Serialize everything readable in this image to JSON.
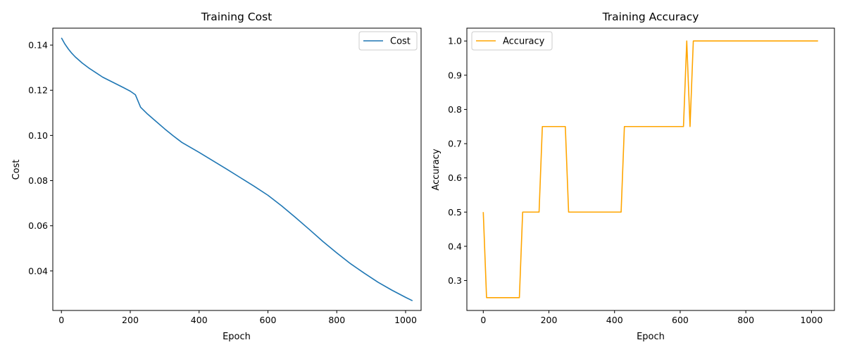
{
  "chart_data": [
    {
      "type": "line",
      "title": "Training Cost",
      "xlabel": "Epoch",
      "ylabel": "Cost",
      "xlim": [
        -25,
        1045
      ],
      "ylim": [
        0.0225,
        0.1475
      ],
      "xticks": [
        0,
        200,
        400,
        600,
        800,
        1000
      ],
      "yticks": [
        0.04,
        0.06,
        0.08,
        0.1,
        0.12,
        0.14
      ],
      "ytick_labels": [
        "0.04",
        "0.06",
        "0.08",
        "0.10",
        "0.12",
        "0.14"
      ],
      "legend_position": "upper right",
      "grid": false,
      "series": [
        {
          "name": "Cost",
          "color": "#1f77b4",
          "x": [
            0,
            10,
            20,
            30,
            40,
            60,
            80,
            100,
            120,
            150,
            180,
            200,
            215,
            230,
            250,
            275,
            300,
            325,
            350,
            400,
            440,
            480,
            520,
            560,
            600,
            640,
            680,
            720,
            760,
            800,
            840,
            880,
            920,
            960,
            1000,
            1020
          ],
          "y": [
            0.1432,
            0.1405,
            0.1383,
            0.1364,
            0.1348,
            0.1321,
            0.1298,
            0.1278,
            0.1258,
            0.1235,
            0.1212,
            0.1196,
            0.118,
            0.1125,
            0.1095,
            0.1062,
            0.1029,
            0.0998,
            0.0969,
            0.0925,
            0.0888,
            0.0851,
            0.0813,
            0.0775,
            0.0735,
            0.0688,
            0.0637,
            0.0584,
            0.053,
            0.048,
            0.0432,
            0.039,
            0.035,
            0.0315,
            0.0283,
            0.0268
          ]
        }
      ]
    },
    {
      "type": "line",
      "title": "Training Accuracy",
      "xlabel": "Epoch",
      "ylabel": "Accuracy",
      "xlim": [
        -50,
        1070
      ],
      "ylim": [
        0.2125,
        1.0375
      ],
      "xticks": [
        0,
        200,
        400,
        600,
        800,
        1000
      ],
      "yticks": [
        0.3,
        0.4,
        0.5,
        0.6,
        0.7,
        0.8,
        0.9,
        1.0
      ],
      "ytick_labels": [
        "0.3",
        "0.4",
        "0.5",
        "0.6",
        "0.7",
        "0.8",
        "0.9",
        "1.0"
      ],
      "legend_position": "upper left",
      "grid": false,
      "series": [
        {
          "name": "Accuracy",
          "color": "#ffa500",
          "x": [
            0,
            10,
            110,
            120,
            170,
            180,
            250,
            260,
            420,
            430,
            610,
            620,
            630,
            640,
            1020
          ],
          "y": [
            0.5,
            0.25,
            0.25,
            0.5,
            0.5,
            0.75,
            0.75,
            0.5,
            0.5,
            0.75,
            0.75,
            1.0,
            0.75,
            1.0,
            1.0
          ]
        }
      ]
    }
  ]
}
